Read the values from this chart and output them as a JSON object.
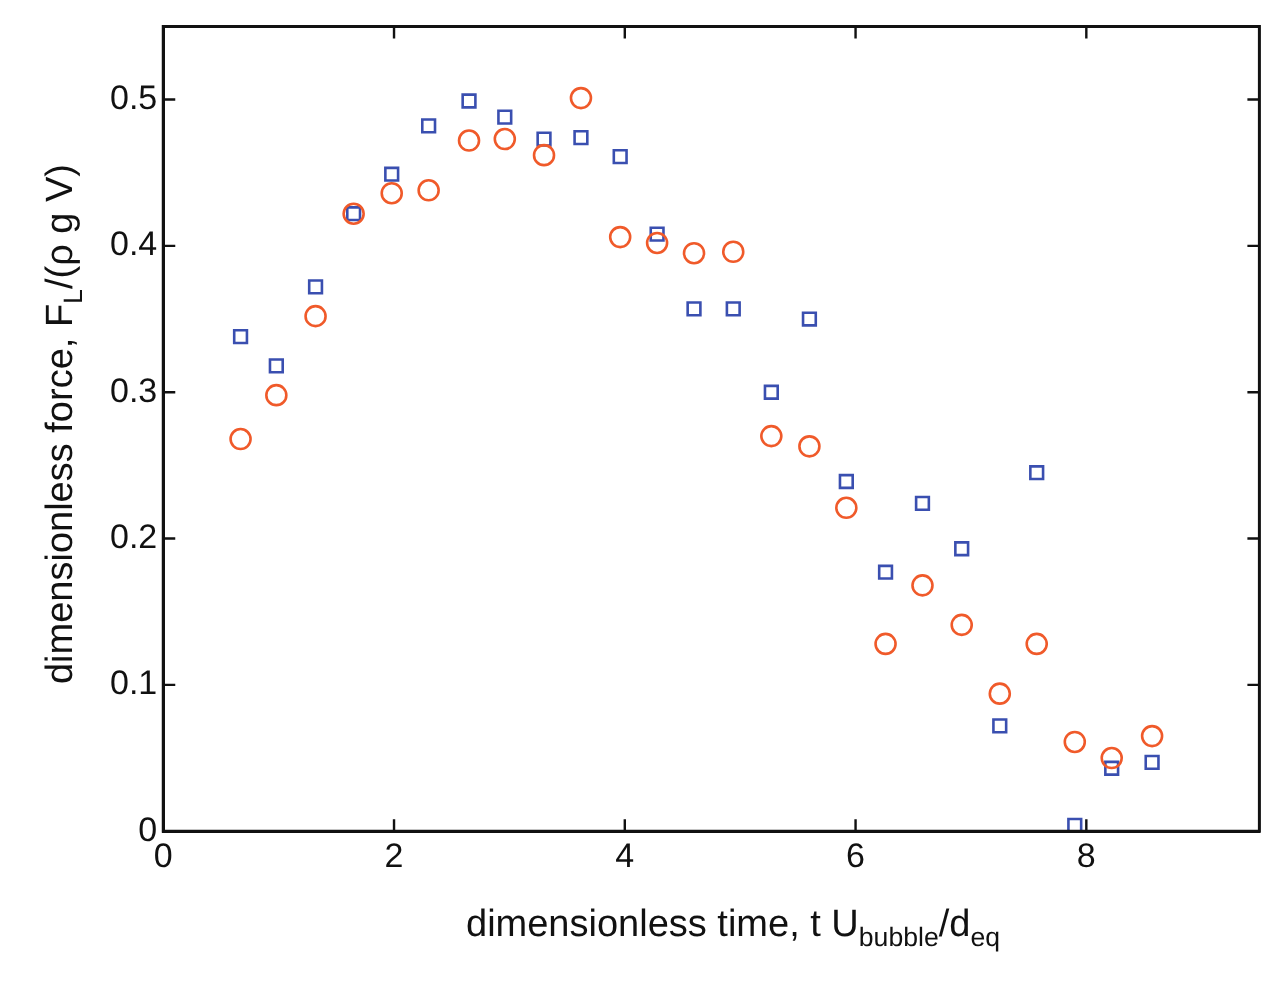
{
  "chart_data": {
    "type": "scatter",
    "xlabel": "dimensionless time, t U$_{bubble}$/d$_{eq}$",
    "ylabel": "dimensionless force, F$_{L}$/(ρ g V)",
    "x": [
      0.67,
      0.98,
      1.32,
      1.65,
      1.98,
      2.3,
      2.65,
      2.96,
      3.3,
      3.62,
      3.96,
      4.28,
      4.6,
      4.94,
      5.27,
      5.6,
      5.92,
      6.26,
      6.58,
      6.92,
      7.25,
      7.57,
      7.9,
      8.22,
      8.57
    ],
    "series": [
      {
        "color": "#3a4fb0",
        "marker": "square",
        "values": [
          0.338,
          0.318,
          0.372,
          0.422,
          0.449,
          0.482,
          0.499,
          0.488,
          0.473,
          0.474,
          0.461,
          0.408,
          0.357,
          0.357,
          0.3,
          0.35,
          0.239,
          0.177,
          0.224,
          0.193,
          0.072,
          0.245,
          0.004,
          0.043,
          0.047
        ]
      },
      {
        "color": "#f05a2a",
        "marker": "circle",
        "values": [
          0.268,
          0.298,
          0.352,
          0.422,
          0.436,
          0.438,
          0.472,
          0.473,
          0.462,
          0.501,
          0.406,
          0.402,
          0.395,
          0.396,
          0.27,
          0.263,
          0.221,
          0.128,
          0.168,
          0.141,
          0.094,
          0.128,
          0.061,
          0.05,
          0.065
        ]
      }
    ],
    "xlim": [
      0,
      9.5
    ],
    "xticks": [
      0,
      2,
      4,
      6,
      8
    ],
    "ylim": [
      0,
      0.55
    ],
    "yticks": [
      0,
      0.1,
      0.2,
      0.3,
      0.4,
      0.5
    ],
    "grid": false,
    "legend": false
  }
}
